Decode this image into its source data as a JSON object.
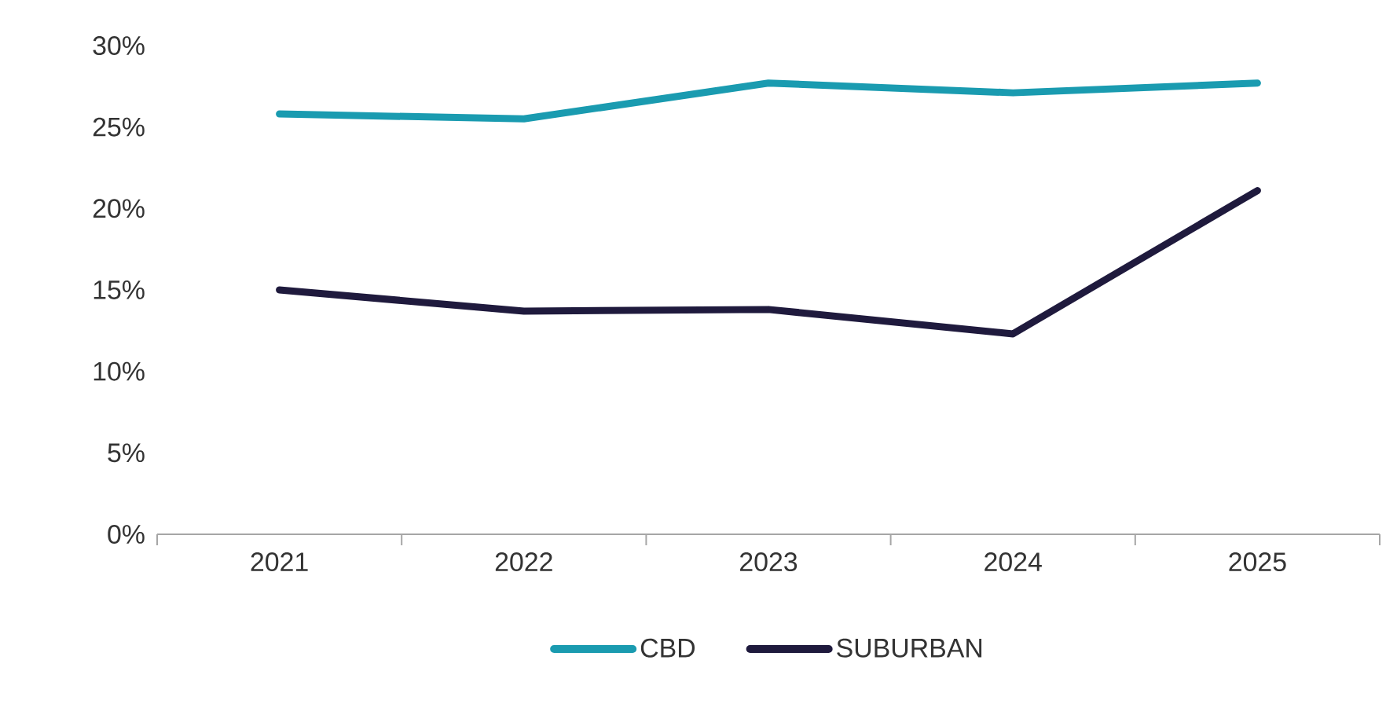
{
  "chart_data": {
    "type": "line",
    "categories": [
      "2021",
      "2022",
      "2023",
      "2024",
      "2025"
    ],
    "series": [
      {
        "name": "CBD",
        "color": "#1a9bb0",
        "values": [
          25.8,
          25.5,
          27.7,
          27.1,
          27.7
        ]
      },
      {
        "name": "SUBURBAN",
        "color": "#1f1a3d",
        "values": [
          15.0,
          13.7,
          13.8,
          12.3,
          21.1
        ]
      }
    ],
    "ylim": [
      0,
      30
    ],
    "yticks": [
      {
        "value": 0,
        "label": "0%"
      },
      {
        "value": 5,
        "label": "5%"
      },
      {
        "value": 10,
        "label": "10%"
      },
      {
        "value": 15,
        "label": "15%"
      },
      {
        "value": 20,
        "label": "20%"
      },
      {
        "value": 25,
        "label": "25%"
      },
      {
        "value": 30,
        "label": "30%"
      }
    ],
    "legend": "bottom"
  }
}
